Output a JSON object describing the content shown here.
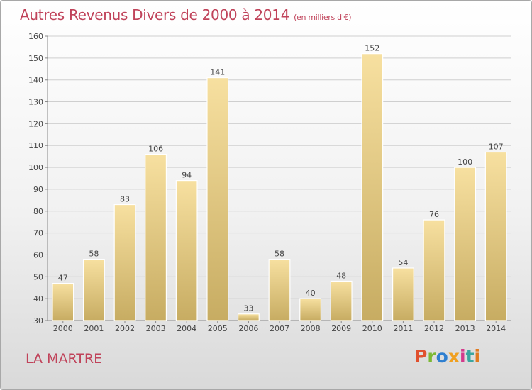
{
  "title": "Autres Revenus Divers de 2000 à 2014",
  "subtitle": "(en milliers d'€)",
  "location": "LA MARTRE",
  "logo": {
    "text": "Proxiti",
    "colors": [
      "#e0502e",
      "#7bb833",
      "#2e7fd0",
      "#f0a020",
      "#d43a8c",
      "#3aa6a0",
      "#e07a20"
    ]
  },
  "colors": {
    "bar_light": "#f7e0a0",
    "bar_dark": "#c7ac62",
    "grid": "#cfcfcf",
    "text_accent": "#c0435a"
  },
  "chart_data": {
    "type": "bar",
    "categories": [
      "2000",
      "2001",
      "2002",
      "2003",
      "2004",
      "2005",
      "2006",
      "2007",
      "2008",
      "2009",
      "2010",
      "2011",
      "2012",
      "2013",
      "2014"
    ],
    "values": [
      47,
      58,
      83,
      106,
      94,
      141,
      33,
      58,
      40,
      48,
      152,
      54,
      76,
      100,
      107
    ],
    "ylim": [
      30,
      160
    ],
    "yticks": [
      30,
      40,
      50,
      60,
      70,
      80,
      90,
      100,
      110,
      120,
      130,
      140,
      150,
      160
    ],
    "grid": true,
    "xlabel": "",
    "ylabel": ""
  }
}
